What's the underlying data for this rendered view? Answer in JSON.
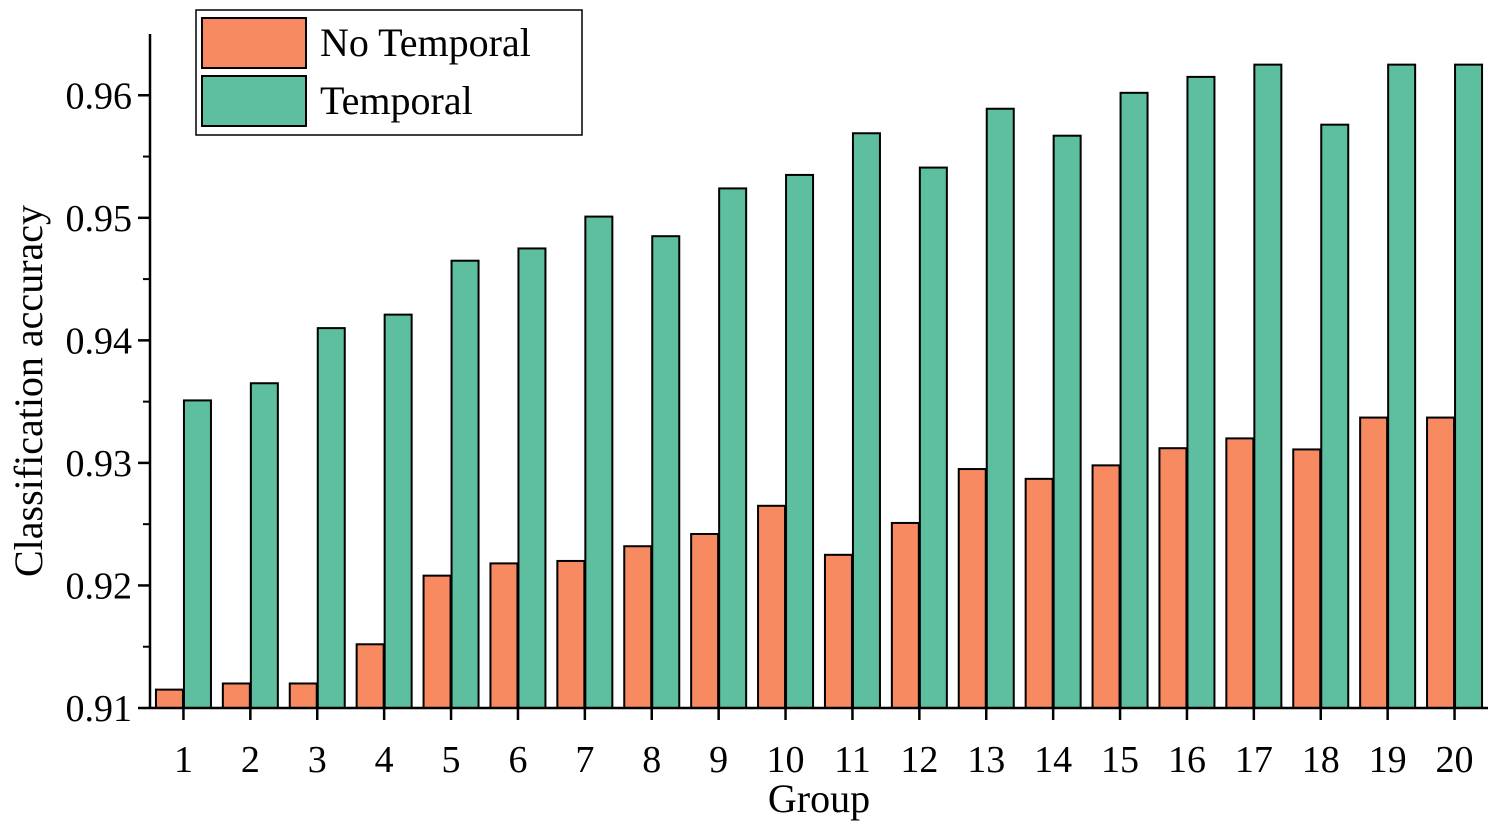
{
  "chart_data": {
    "type": "bar",
    "xlabel": "Group",
    "ylabel": "Classification accuracy",
    "ylim": [
      0.91,
      0.965
    ],
    "yticks": [
      0.91,
      0.92,
      0.93,
      0.94,
      0.95,
      0.96
    ],
    "ytick_labels": [
      "0.91",
      "0.92",
      "0.93",
      "0.94",
      "0.95",
      "0.96"
    ],
    "categories": [
      "1",
      "2",
      "3",
      "4",
      "5",
      "6",
      "7",
      "8",
      "9",
      "10",
      "11",
      "12",
      "13",
      "14",
      "15",
      "16",
      "17",
      "18",
      "19",
      "20"
    ],
    "series": [
      {
        "name": "No Temporal",
        "color": "#f78a60",
        "values": [
          0.9115,
          0.912,
          0.912,
          0.9152,
          0.9208,
          0.9218,
          0.922,
          0.9232,
          0.9242,
          0.9265,
          0.9225,
          0.9251,
          0.9295,
          0.9287,
          0.9298,
          0.9312,
          0.932,
          0.9311,
          0.9337,
          0.9337
        ]
      },
      {
        "name": "Temporal",
        "color": "#5dbfa0",
        "values": [
          0.9351,
          0.9365,
          0.941,
          0.9421,
          0.9465,
          0.9475,
          0.9501,
          0.9485,
          0.9524,
          0.9535,
          0.9569,
          0.9541,
          0.9589,
          0.9567,
          0.9602,
          0.9615,
          0.9625,
          0.9576,
          0.9625,
          0.9625
        ]
      }
    ],
    "legend_position": "top-left",
    "grid": false
  }
}
